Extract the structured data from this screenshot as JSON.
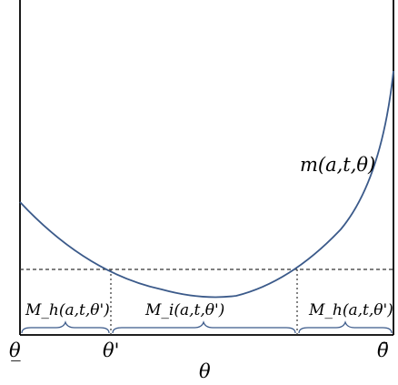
{
  "curve_label": "m(a,t,θ)",
  "regions": [
    {
      "label": "M_h(a,t,θ')"
    },
    {
      "label": "M_i(a,t,θ')"
    },
    {
      "label": "M_h(a,t,θ')"
    }
  ],
  "axis": {
    "left_tick": "θ̲",
    "split_tick": "θ'",
    "right_tick": "θ̄",
    "variable": "θ"
  },
  "colors": {
    "curve": "#3b5a8a",
    "axes": "#000000",
    "dashed": "#333333",
    "brace": "#3b5a8a"
  }
}
